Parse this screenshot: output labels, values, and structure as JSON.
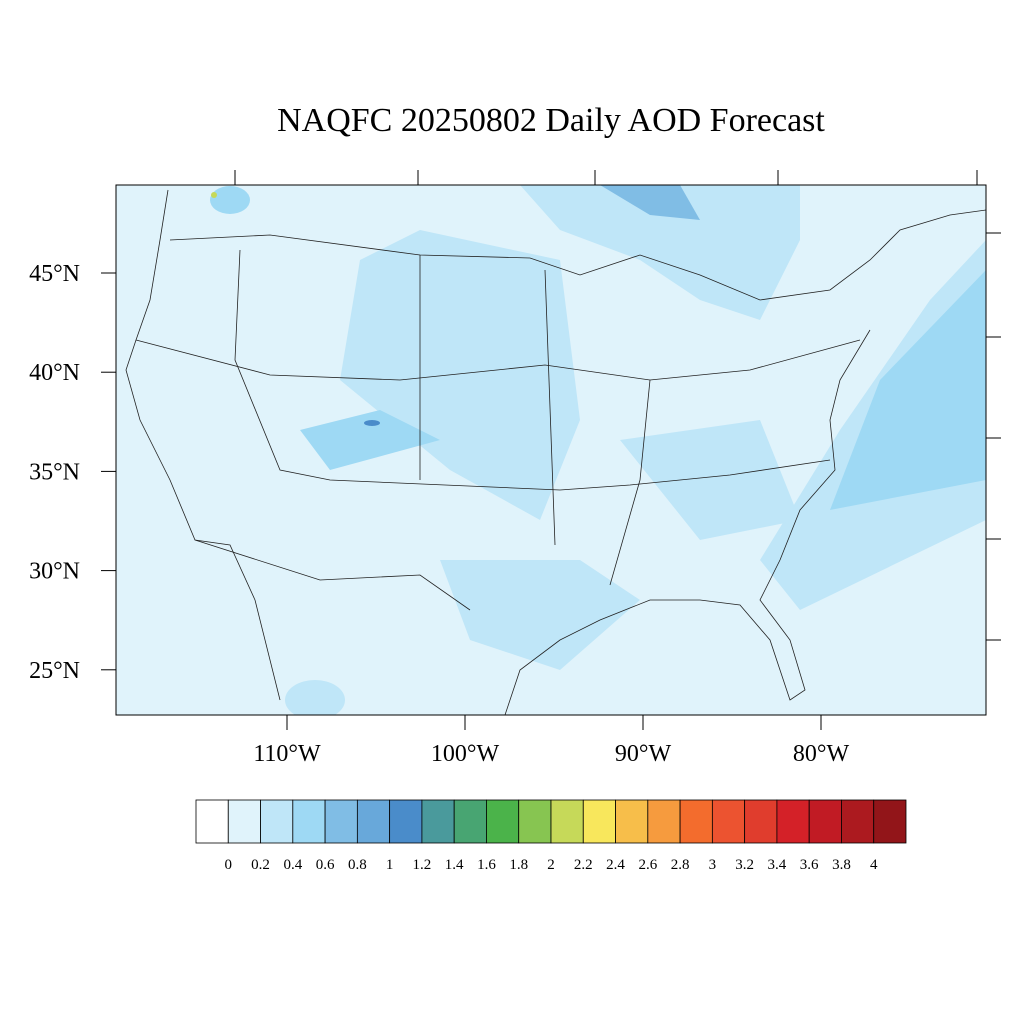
{
  "title": "NAQFC 20250802 Daily AOD Forecast",
  "map": {
    "lat_labels": [
      "45°N",
      "40°N",
      "35°N",
      "30°N",
      "25°N"
    ],
    "lon_labels": [
      "110°W",
      "100°W",
      "90°W",
      "80°W"
    ]
  },
  "colorbar": {
    "levels": [
      0,
      0.2,
      0.4,
      0.6,
      0.8,
      1,
      1.2,
      1.4,
      1.6,
      1.8,
      2,
      2.2,
      2.4,
      2.6,
      2.8,
      3,
      3.2,
      3.4,
      3.6,
      3.8,
      4
    ],
    "colors": [
      "#ffffff",
      "#e0f3fb",
      "#bfe6f8",
      "#9ed9f4",
      "#80bde5",
      "#68a8da",
      "#4a8cca",
      "#4a9a9c",
      "#48a572",
      "#4bb34a",
      "#87c551",
      "#c6d959",
      "#f8e75c",
      "#f7be4a",
      "#f69b3e",
      "#f36c2d",
      "#ec5330",
      "#e03d2d",
      "#d42128",
      "#c11b24",
      "#ac1a1f",
      "#921519"
    ]
  }
}
